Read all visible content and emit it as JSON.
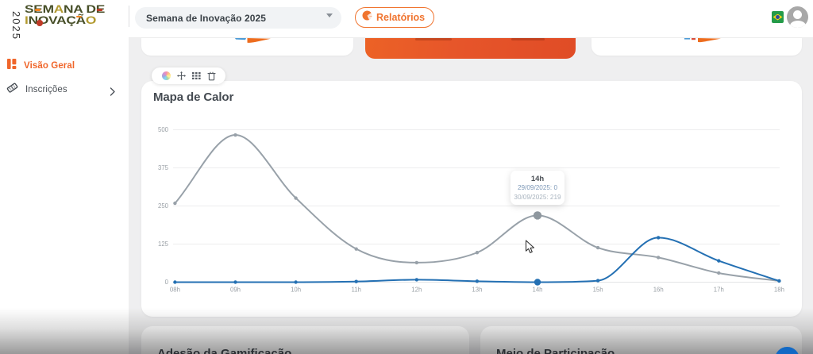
{
  "logo": {
    "year": "2025",
    "line1": "SEMANA DE",
    "line2": "INOVAÇÃO",
    "line1_colors": [
      "#474f28",
      "#474f28",
      "#474f28",
      "#b29a30",
      "#474f28",
      "#474f28",
      null,
      "#474f28",
      "#474f28"
    ],
    "line2_colors": [
      "#b29a30",
      "#474f28",
      "#474f28",
      "#474f28",
      "#474f28",
      "#474f28",
      "#474f28",
      "#b29a30"
    ],
    "accent_red": "#bf3a27",
    "accent_orange": "#f5841f"
  },
  "sidebar": {
    "items": [
      {
        "label": "Visão Geral",
        "icon": "dashboard-icon",
        "active": true
      },
      {
        "label": "Inscrições",
        "icon": "ticket-icon",
        "active": false,
        "has_chevron": true
      }
    ]
  },
  "topbar": {
    "event_select": {
      "value": "Semana de Inovação 2025"
    },
    "reports_button": {
      "label": "Relatórios",
      "icon": "pie-chart-icon"
    },
    "language_flag": "brazil-flag-icon",
    "avatar": "user-avatar-icon"
  },
  "chart_card": {
    "title": "Mapa de Calor",
    "toolbar_icons": [
      "color-wheel-icon",
      "move-icon",
      "grid-icon",
      "trash-icon"
    ]
  },
  "tooltip": {
    "title": "14h",
    "lines": [
      {
        "text": "29/09/2025: 0"
      },
      {
        "text": "30/09/2025: 219"
      }
    ]
  },
  "bottom_cards": [
    {
      "title": "Adesão da Gamificação"
    },
    {
      "title": "Meio de Participação"
    }
  ],
  "chart_data": {
    "type": "line",
    "title": "Mapa de Calor",
    "x": [
      "08h",
      "09h",
      "10h",
      "11h",
      "12h",
      "13h",
      "14h",
      "15h",
      "16h",
      "17h",
      "18h"
    ],
    "series": [
      {
        "name": "29/09/2025",
        "color": "#2470b3",
        "values": [
          0,
          0,
          0,
          2,
          8,
          3,
          0,
          5,
          146,
          70,
          4
        ]
      },
      {
        "name": "30/09/2025",
        "color": "#98a1a9",
        "values": [
          259,
          483,
          276,
          109,
          64,
          97,
          219,
          113,
          81,
          30,
          4
        ]
      }
    ],
    "ylim": [
      0,
      500
    ],
    "yticks": [
      0,
      125,
      250,
      375,
      500
    ],
    "grid": true,
    "legend": "none",
    "highlight_index": 6,
    "curve": "monotone"
  },
  "colors": {
    "accent_orange": "#f0662b",
    "chart_blue": "#2470b3",
    "chart_gray": "#98a1a9",
    "fab_blue": "#1671cd",
    "background": "#efeff0"
  }
}
